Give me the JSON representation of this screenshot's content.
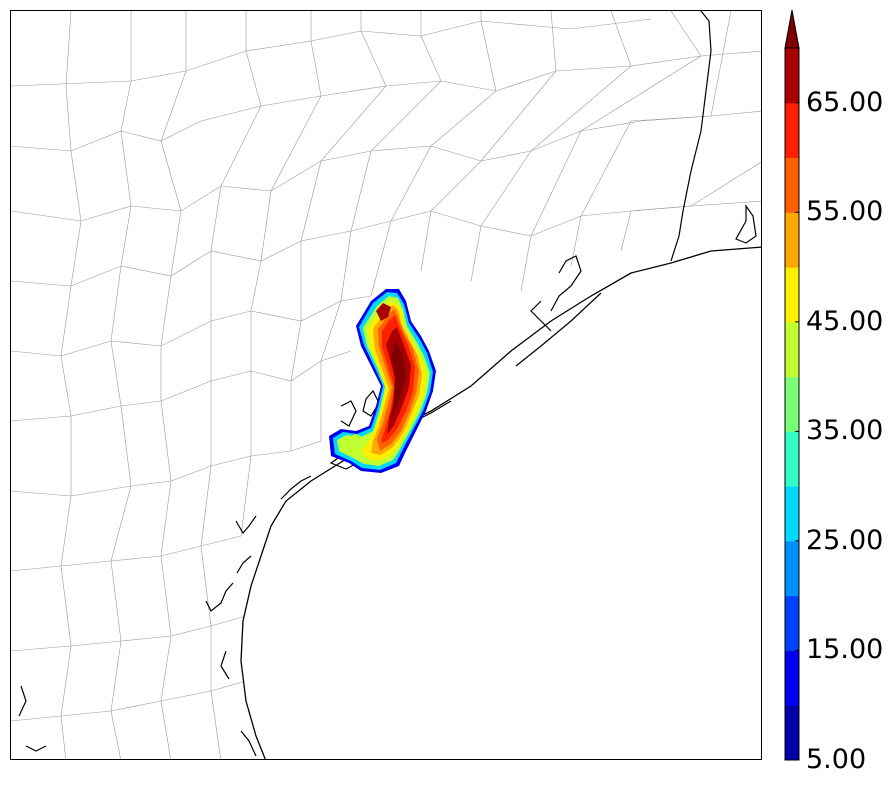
{
  "colorbar": {
    "levels": [
      5,
      10,
      15,
      20,
      25,
      30,
      35,
      40,
      45,
      50,
      55,
      60,
      65,
      70
    ],
    "colors": [
      "#0000a8",
      "#0000f0",
      "#0040ff",
      "#0090ff",
      "#00d8ff",
      "#30ffc8",
      "#78ff78",
      "#c0ff30",
      "#ffee00",
      "#ffa800",
      "#ff6000",
      "#ff2000",
      "#a80000"
    ],
    "overflow_color": "#800000",
    "extend": "max",
    "tick_labels": [
      "5.00",
      "15.00",
      "25.00",
      "35.00",
      "45.00",
      "55.00",
      "65.00"
    ]
  },
  "map": {
    "region": "Texas Gulf Coast",
    "land_color": "#ffffff",
    "water_color": "#ffffff",
    "coastline_color": "#000000",
    "county_line_color": "#999999"
  }
}
